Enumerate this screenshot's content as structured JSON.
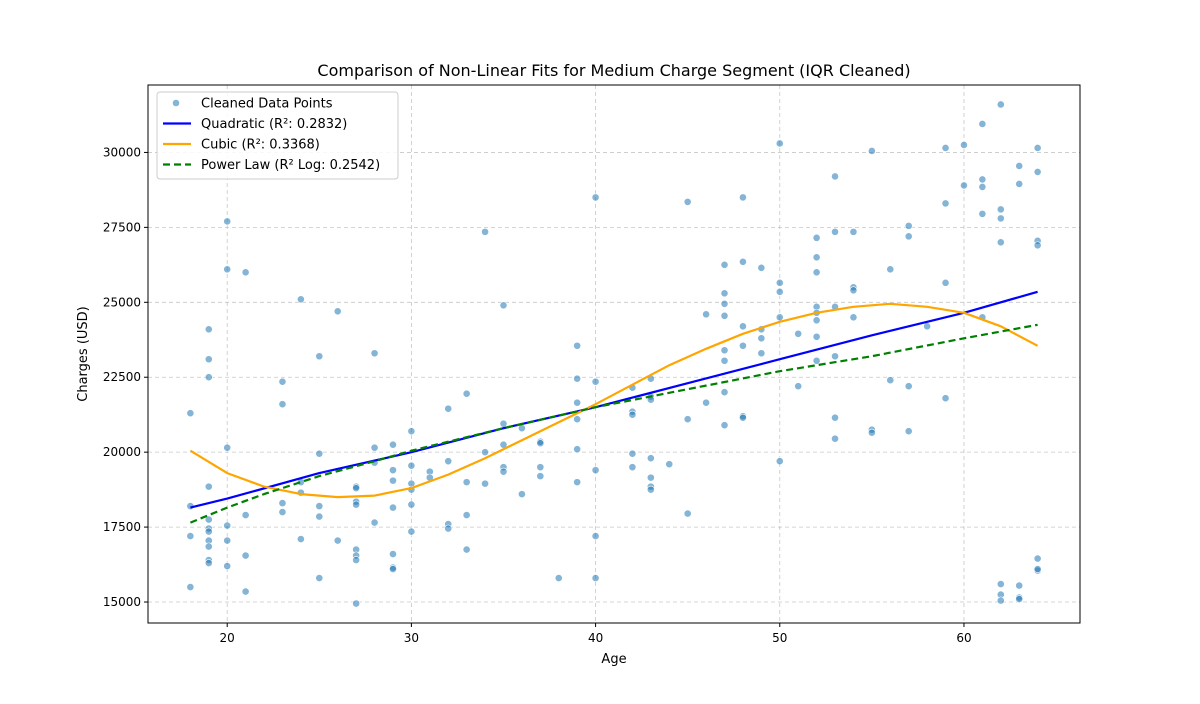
{
  "chart_data": {
    "type": "scatter",
    "title": "Comparison of Non-Linear Fits for Medium Charge Segment (IQR Cleaned)",
    "xlabel": "Age",
    "ylabel": "Charges (USD)",
    "xlim": [
      15.7,
      66.3
    ],
    "ylim": [
      14300,
      32250
    ],
    "xticks": [
      20,
      30,
      40,
      50,
      60
    ],
    "yticks": [
      15000,
      17500,
      20000,
      22500,
      25000,
      27500,
      30000
    ],
    "ytick_labels": [
      "15000",
      "17500",
      "20000",
      "22500",
      "25000",
      "27500",
      "30000"
    ],
    "grid": true,
    "legend_position": "top-left",
    "legend": [
      {
        "label": "Cleaned Data Points",
        "kind": "marker",
        "color": "#1f77b4"
      },
      {
        "label": "Quadratic (R²: 0.2832)",
        "kind": "solid",
        "color": "#0000ff"
      },
      {
        "label": "Cubic (R²: 0.3368)",
        "kind": "solid",
        "color": "#ffa500"
      },
      {
        "label": "Power Law (R² Log: 0.2542)",
        "kind": "dashed",
        "color": "#008000"
      }
    ],
    "points": [
      [
        18,
        21300
      ],
      [
        18,
        18200
      ],
      [
        18,
        17200
      ],
      [
        18,
        15500
      ],
      [
        19,
        24100
      ],
      [
        19,
        23100
      ],
      [
        19,
        22500
      ],
      [
        19,
        18850
      ],
      [
        19,
        17750
      ],
      [
        19,
        17450
      ],
      [
        19,
        17350
      ],
      [
        19,
        17050
      ],
      [
        19,
        16850
      ],
      [
        19,
        16400
      ],
      [
        19,
        16300
      ],
      [
        20,
        27700
      ],
      [
        20,
        26100
      ],
      [
        20,
        20150
      ],
      [
        20,
        17550
      ],
      [
        20,
        17050
      ],
      [
        20,
        16200
      ],
      [
        21,
        26000
      ],
      [
        21,
        17900
      ],
      [
        21,
        16550
      ],
      [
        21,
        15350
      ],
      [
        23,
        22350
      ],
      [
        23,
        21600
      ],
      [
        23,
        18300
      ],
      [
        23,
        18000
      ],
      [
        24,
        25100
      ],
      [
        24,
        19000
      ],
      [
        24,
        18650
      ],
      [
        24,
        17100
      ],
      [
        25,
        23200
      ],
      [
        25,
        19950
      ],
      [
        25,
        18200
      ],
      [
        25,
        17850
      ],
      [
        25,
        15800
      ],
      [
        26,
        24700
      ],
      [
        26,
        17050
      ],
      [
        27,
        18850
      ],
      [
        27,
        18800
      ],
      [
        27,
        18350
      ],
      [
        27,
        18250
      ],
      [
        27,
        16750
      ],
      [
        27,
        16550
      ],
      [
        27,
        16400
      ],
      [
        27,
        14950
      ],
      [
        28,
        23300
      ],
      [
        28,
        20150
      ],
      [
        28,
        19650
      ],
      [
        28,
        17650
      ],
      [
        29,
        20250
      ],
      [
        29,
        19400
      ],
      [
        29,
        19050
      ],
      [
        29,
        18150
      ],
      [
        29,
        16600
      ],
      [
        29,
        16150
      ],
      [
        29,
        16100
      ],
      [
        30,
        20700
      ],
      [
        30,
        19550
      ],
      [
        30,
        18950
      ],
      [
        30,
        18750
      ],
      [
        30,
        18250
      ],
      [
        30,
        17350
      ],
      [
        31,
        19350
      ],
      [
        31,
        19150
      ],
      [
        32,
        21450
      ],
      [
        32,
        19700
      ],
      [
        32,
        17600
      ],
      [
        32,
        17450
      ],
      [
        33,
        21950
      ],
      [
        33,
        19000
      ],
      [
        33,
        17900
      ],
      [
        33,
        16750
      ],
      [
        34,
        27350
      ],
      [
        34,
        20000
      ],
      [
        34,
        18950
      ],
      [
        35,
        24900
      ],
      [
        35,
        20950
      ],
      [
        35,
        20250
      ],
      [
        35,
        19500
      ],
      [
        35,
        19350
      ],
      [
        36,
        20800
      ],
      [
        36,
        18600
      ],
      [
        37,
        20350
      ],
      [
        37,
        20300
      ],
      [
        37,
        19500
      ],
      [
        37,
        19200
      ],
      [
        38,
        15800
      ],
      [
        39,
        23550
      ],
      [
        39,
        22450
      ],
      [
        39,
        21650
      ],
      [
        39,
        21100
      ],
      [
        39,
        20100
      ],
      [
        39,
        19000
      ],
      [
        40,
        28500
      ],
      [
        40,
        22350
      ],
      [
        40,
        19400
      ],
      [
        40,
        17200
      ],
      [
        40,
        15800
      ],
      [
        42,
        22150
      ],
      [
        42,
        21350
      ],
      [
        42,
        21250
      ],
      [
        42,
        19950
      ],
      [
        42,
        19500
      ],
      [
        43,
        22450
      ],
      [
        43,
        21850
      ],
      [
        43,
        21750
      ],
      [
        43,
        19800
      ],
      [
        43,
        19150
      ],
      [
        43,
        18850
      ],
      [
        43,
        18750
      ],
      [
        44,
        19600
      ],
      [
        45,
        28350
      ],
      [
        45,
        21100
      ],
      [
        45,
        17950
      ],
      [
        46,
        24600
      ],
      [
        46,
        21650
      ],
      [
        47,
        26250
      ],
      [
        47,
        25300
      ],
      [
        47,
        24950
      ],
      [
        47,
        24550
      ],
      [
        47,
        23400
      ],
      [
        47,
        23050
      ],
      [
        47,
        22000
      ],
      [
        47,
        20900
      ],
      [
        48,
        28500
      ],
      [
        48,
        26350
      ],
      [
        48,
        24200
      ],
      [
        48,
        23550
      ],
      [
        48,
        21200
      ],
      [
        48,
        21150
      ],
      [
        49,
        26150
      ],
      [
        49,
        24100
      ],
      [
        49,
        23800
      ],
      [
        49,
        23300
      ],
      [
        50,
        30300
      ],
      [
        50,
        25650
      ],
      [
        50,
        25350
      ],
      [
        50,
        24500
      ],
      [
        50,
        19700
      ],
      [
        51,
        23950
      ],
      [
        51,
        22200
      ],
      [
        52,
        27150
      ],
      [
        52,
        26500
      ],
      [
        52,
        26000
      ],
      [
        52,
        24850
      ],
      [
        52,
        24650
      ],
      [
        52,
        24400
      ],
      [
        52,
        23850
      ],
      [
        52,
        23050
      ],
      [
        53,
        29200
      ],
      [
        53,
        27350
      ],
      [
        53,
        24850
      ],
      [
        53,
        23200
      ],
      [
        53,
        21150
      ],
      [
        53,
        20450
      ],
      [
        54,
        27350
      ],
      [
        54,
        25500
      ],
      [
        54,
        25400
      ],
      [
        54,
        24500
      ],
      [
        55,
        30050
      ],
      [
        55,
        20750
      ],
      [
        55,
        20650
      ],
      [
        56,
        26100
      ],
      [
        56,
        22400
      ],
      [
        57,
        27550
      ],
      [
        57,
        27200
      ],
      [
        57,
        22200
      ],
      [
        57,
        20700
      ],
      [
        58,
        24200
      ],
      [
        59,
        30150
      ],
      [
        59,
        28300
      ],
      [
        59,
        25650
      ],
      [
        59,
        21800
      ],
      [
        60,
        30250
      ],
      [
        60,
        28900
      ],
      [
        61,
        30950
      ],
      [
        61,
        29100
      ],
      [
        61,
        28850
      ],
      [
        61,
        27950
      ],
      [
        61,
        24500
      ],
      [
        62,
        31600
      ],
      [
        62,
        28100
      ],
      [
        62,
        27800
      ],
      [
        62,
        27000
      ],
      [
        62,
        15600
      ],
      [
        62,
        15250
      ],
      [
        62,
        15050
      ],
      [
        63,
        29550
      ],
      [
        63,
        28950
      ],
      [
        63,
        15550
      ],
      [
        63,
        15150
      ],
      [
        63,
        15100
      ],
      [
        64,
        30150
      ],
      [
        64,
        29350
      ],
      [
        64,
        27050
      ],
      [
        64,
        26900
      ],
      [
        64,
        16450
      ],
      [
        64,
        16050
      ],
      [
        64,
        16100
      ]
    ],
    "fits": [
      {
        "name": "Quadratic (R²: 0.2832)",
        "color": "#0000ff",
        "dash": false,
        "x": [
          18,
          20,
          25,
          30,
          35,
          40,
          45,
          50,
          55,
          60,
          64
        ],
        "y": [
          18150,
          18450,
          19300,
          20000,
          20800,
          21500,
          22300,
          23100,
          23900,
          24650,
          25350
        ]
      },
      {
        "name": "Cubic (R²: 0.3368)",
        "color": "#ffa500",
        "dash": false,
        "x": [
          18,
          20,
          22,
          24,
          26,
          28,
          30,
          32,
          34,
          36,
          38,
          40,
          42,
          44,
          46,
          48,
          50,
          52,
          54,
          56,
          58,
          60,
          62,
          64
        ],
        "y": [
          20050,
          19300,
          18850,
          18600,
          18500,
          18550,
          18800,
          19250,
          19800,
          20400,
          21000,
          21600,
          22250,
          22900,
          23450,
          23950,
          24350,
          24650,
          24850,
          24950,
          24850,
          24650,
          24200,
          23550
        ]
      },
      {
        "name": "Power Law (R² Log: 0.2542)",
        "color": "#008000",
        "dash": true,
        "x": [
          18,
          19,
          20,
          22,
          25,
          28,
          30,
          35,
          40,
          45,
          50,
          55,
          60,
          64
        ],
        "y": [
          17650,
          17900,
          18150,
          18600,
          19200,
          19700,
          20050,
          20800,
          21500,
          22100,
          22700,
          23200,
          23800,
          24250
        ]
      }
    ]
  }
}
